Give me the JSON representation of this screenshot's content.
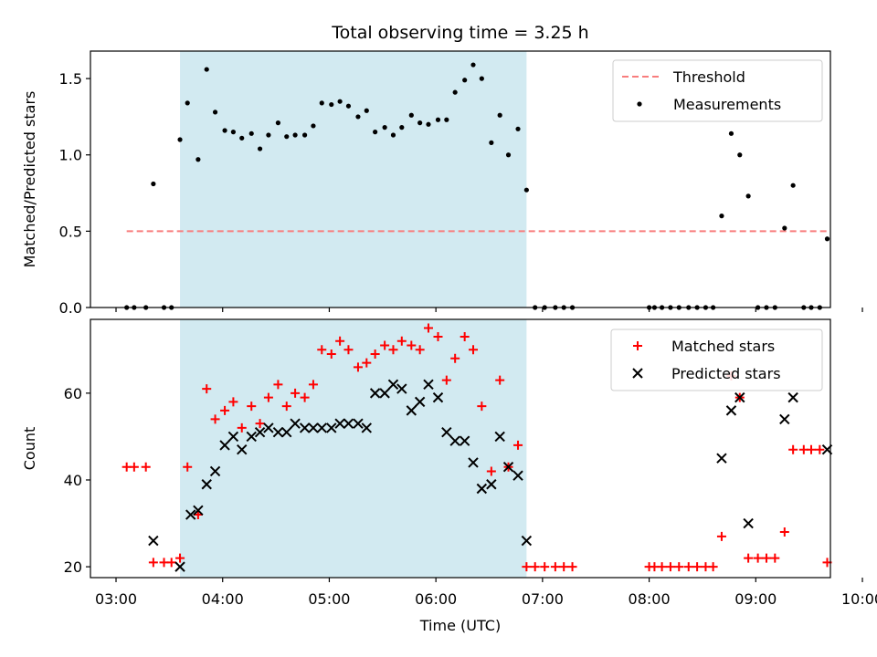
{
  "chart_data": {
    "title": "Total observing time = 3.25 h",
    "xlabel": "Time (UTC)",
    "x_tick_labels": [
      "03:00",
      "04:00",
      "05:00",
      "06:00",
      "07:00",
      "08:00",
      "09:00",
      "10:00"
    ],
    "x_tick_hours": [
      3,
      4,
      5,
      6,
      7,
      8,
      9,
      10
    ],
    "xlim_hours": [
      2.76,
      9.7
    ],
    "shaded_span_hours": [
      3.6,
      6.85
    ],
    "colors": {
      "threshold": "#f87d7d",
      "span": "#add8e6",
      "matched": "#ff0000",
      "predicted": "#000000",
      "points": "#000000"
    },
    "panels": [
      {
        "type": "scatter",
        "ylabel": "Matched/Predicted stars",
        "ylim": [
          0,
          1.68
        ],
        "y_ticks": [
          0.0,
          0.5,
          1.0,
          1.5
        ],
        "y_tick_labels": [
          "0.0",
          "0.5",
          "1.0",
          "1.5"
        ],
        "legend": {
          "position": "top-right",
          "entries": [
            "Threshold",
            "Measurements"
          ]
        },
        "threshold": {
          "name": "Threshold",
          "y": 0.5,
          "x_range": [
            3.1,
            9.67
          ]
        },
        "series": [
          {
            "name": "Measurements",
            "marker": "dot",
            "x": [
              3.1,
              3.17,
              3.28,
              3.35,
              3.45,
              3.52,
              3.6,
              3.67,
              3.77,
              3.85,
              3.93,
              4.02,
              4.1,
              4.18,
              4.27,
              4.35,
              4.43,
              4.52,
              4.6,
              4.68,
              4.77,
              4.85,
              4.93,
              5.02,
              5.1,
              5.18,
              5.27,
              5.35,
              5.43,
              5.52,
              5.6,
              5.68,
              5.77,
              5.85,
              5.93,
              6.02,
              6.1,
              6.18,
              6.27,
              6.35,
              6.43,
              6.52,
              6.6,
              6.68,
              6.77,
              6.85,
              6.93,
              7.02,
              7.12,
              7.2,
              7.28,
              8.0,
              8.05,
              8.12,
              8.2,
              8.28,
              8.37,
              8.45,
              8.53,
              8.6,
              8.68,
              8.77,
              8.85,
              8.93,
              9.02,
              9.1,
              9.18,
              9.27,
              9.35,
              9.45,
              9.52,
              9.6,
              9.67
            ],
            "y": [
              0,
              0,
              0,
              0.81,
              0,
              0,
              1.1,
              1.34,
              0.97,
              1.56,
              1.28,
              1.16,
              1.15,
              1.11,
              1.14,
              1.04,
              1.13,
              1.21,
              1.12,
              1.13,
              1.13,
              1.19,
              1.34,
              1.33,
              1.35,
              1.32,
              1.25,
              1.29,
              1.15,
              1.18,
              1.13,
              1.18,
              1.26,
              1.21,
              1.2,
              1.23,
              1.23,
              1.41,
              1.49,
              1.59,
              1.5,
              1.08,
              1.26,
              1.0,
              1.17,
              0.77,
              0,
              0,
              0,
              0,
              0,
              0,
              0,
              0,
              0,
              0,
              0,
              0,
              0,
              0,
              0.6,
              1.14,
              1.0,
              0.73,
              0,
              0,
              0,
              0.52,
              0.8,
              0,
              0,
              0,
              0.45
            ]
          }
        ]
      },
      {
        "type": "scatter",
        "ylabel": "Count",
        "ylim": [
          17.5,
          77
        ],
        "y_ticks": [
          20,
          40,
          60
        ],
        "y_tick_labels": [
          "20",
          "40",
          "60"
        ],
        "legend": {
          "position": "top-right",
          "entries": [
            "Matched stars",
            "Predicted stars"
          ]
        },
        "series": [
          {
            "name": "Matched stars",
            "marker": "plus",
            "x": [
              3.1,
              3.17,
              3.28,
              3.35,
              3.45,
              3.52,
              3.6,
              3.67,
              3.77,
              3.85,
              3.93,
              4.02,
              4.1,
              4.18,
              4.27,
              4.35,
              4.43,
              4.52,
              4.6,
              4.68,
              4.77,
              4.85,
              4.93,
              5.02,
              5.1,
              5.18,
              5.27,
              5.35,
              5.43,
              5.52,
              5.6,
              5.68,
              5.77,
              5.85,
              5.93,
              6.02,
              6.1,
              6.18,
              6.27,
              6.35,
              6.43,
              6.52,
              6.6,
              6.68,
              6.77,
              6.85,
              6.93,
              7.02,
              7.12,
              7.2,
              7.28,
              8.0,
              8.05,
              8.12,
              8.2,
              8.28,
              8.37,
              8.45,
              8.53,
              8.6,
              8.68,
              8.77,
              8.85,
              8.93,
              9.02,
              9.1,
              9.18,
              9.27,
              9.35,
              9.45,
              9.52,
              9.6,
              9.67
            ],
            "y": [
              43,
              43,
              43,
              21,
              21,
              21,
              22,
              43,
              32,
              61,
              54,
              56,
              58,
              52,
              57,
              53,
              59,
              62,
              57,
              60,
              59,
              62,
              70,
              69,
              72,
              70,
              66,
              67,
              69,
              71,
              70,
              72,
              71,
              70,
              75,
              73,
              63,
              68,
              73,
              70,
              57,
              42,
              63,
              43,
              48,
              20,
              20,
              20,
              20,
              20,
              20,
              20,
              20,
              20,
              20,
              20,
              20,
              20,
              20,
              20,
              27,
              64,
              59,
              22,
              22,
              22,
              22,
              28,
              47,
              47,
              47,
              47,
              21
            ]
          },
          {
            "name": "Predicted stars",
            "marker": "x",
            "x": [
              3.35,
              3.6,
              3.7,
              3.77,
              3.85,
              3.93,
              4.02,
              4.1,
              4.18,
              4.27,
              4.35,
              4.43,
              4.52,
              4.6,
              4.68,
              4.77,
              4.85,
              4.93,
              5.02,
              5.1,
              5.18,
              5.27,
              5.35,
              5.43,
              5.52,
              5.6,
              5.68,
              5.77,
              5.85,
              5.93,
              6.02,
              6.1,
              6.18,
              6.27,
              6.35,
              6.43,
              6.52,
              6.6,
              6.68,
              6.77,
              6.85,
              8.68,
              8.77,
              8.85,
              8.93,
              9.27,
              9.35,
              9.67
            ],
            "y": [
              26,
              20,
              32,
              33,
              39,
              42,
              48,
              50,
              47,
              50,
              51,
              52,
              51,
              51,
              53,
              52,
              52,
              52,
              52,
              53,
              53,
              53,
              52,
              60,
              60,
              62,
              61,
              56,
              58,
              62,
              59,
              51,
              49,
              49,
              44,
              38,
              39,
              50,
              43,
              41,
              26,
              45,
              56,
              59,
              30,
              54,
              59,
              47
            ]
          }
        ]
      }
    ]
  }
}
